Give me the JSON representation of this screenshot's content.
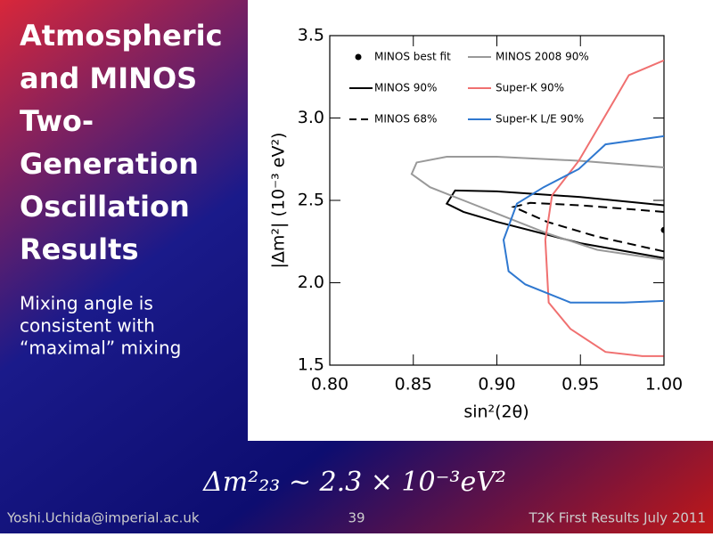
{
  "slide": {
    "title_lines": [
      "Atmospheric",
      "and MINOS",
      "Two-",
      "Generation",
      "Oscillation",
      "Results"
    ],
    "text_lines": [
      "Mixing angle is",
      "consistent with",
      "“maximal” mixing"
    ],
    "formula": "Δm²₂₃ ~ 2.3 × 10⁻³eV²",
    "footer": {
      "left": "Yoshi.Uchida@imperial.ac.uk",
      "center": "39",
      "right": "T2K First Results July 2011"
    }
  },
  "chart_data": {
    "type": "line",
    "xlabel": "sin²(2θ)",
    "ylabel": "|Δm²| (10⁻³ eV²)",
    "xlim": [
      0.8,
      1.0
    ],
    "ylim": [
      1.5,
      3.5
    ],
    "xticks": [
      {
        "value": 0.8,
        "label": "0.80"
      },
      {
        "value": 0.85,
        "label": "0.85"
      },
      {
        "value": 0.9,
        "label": "0.90"
      },
      {
        "value": 0.95,
        "label": "0.95"
      },
      {
        "value": 1.0,
        "label": "1.00"
      }
    ],
    "yticks": [
      {
        "value": 1.5,
        "label": "1.5"
      },
      {
        "value": 2.0,
        "label": "2.0"
      },
      {
        "value": 2.5,
        "label": "2.5"
      },
      {
        "value": 3.0,
        "label": "3.0"
      },
      {
        "value": 3.5,
        "label": "3.5"
      }
    ],
    "legend": "top",
    "series": [
      {
        "name": "MINOS best fit",
        "color": "#000000",
        "marker": "point",
        "x": [
          1.0
        ],
        "y": [
          2.32
        ]
      },
      {
        "name": "MINOS 90%",
        "color": "#000000",
        "dash": false,
        "x": [
          1.0,
          0.95,
          0.9,
          0.875,
          0.87,
          0.88,
          0.9,
          0.95,
          1.0
        ],
        "y": [
          2.47,
          2.52,
          2.555,
          2.56,
          2.48,
          2.43,
          2.37,
          2.24,
          2.15
        ]
      },
      {
        "name": "MINOS 68%",
        "color": "#000000",
        "dash": true,
        "x": [
          1.0,
          0.95,
          0.92,
          0.91,
          0.93,
          0.96,
          1.0
        ],
        "y": [
          2.43,
          2.47,
          2.485,
          2.46,
          2.37,
          2.28,
          2.19
        ]
      },
      {
        "name": "MINOS 2008 90%",
        "color": "#999999",
        "dash": false,
        "x": [
          1.0,
          0.95,
          0.9,
          0.87,
          0.852,
          0.849,
          0.86,
          0.88,
          0.9,
          0.93,
          0.96,
          1.0
        ],
        "y": [
          2.7,
          2.74,
          2.765,
          2.765,
          2.73,
          2.66,
          2.58,
          2.5,
          2.42,
          2.3,
          2.2,
          2.14
        ]
      },
      {
        "name": "Super-K 90%",
        "color": "#f07070",
        "dash": false,
        "x": [
          1.0,
          0.979,
          0.971,
          0.949,
          0.933,
          0.929,
          0.931,
          0.944,
          0.965,
          0.987,
          1.0
        ],
        "y": [
          3.35,
          3.26,
          3.12,
          2.74,
          2.53,
          2.26,
          1.88,
          1.72,
          1.58,
          1.555,
          1.555
        ]
      },
      {
        "name": "Super-K L/E 90%",
        "color": "#2f78d0",
        "dash": false,
        "x": [
          1.0,
          0.965,
          0.949,
          0.928,
          0.912,
          0.904,
          0.907,
          0.917,
          0.944,
          0.976,
          1.0
        ],
        "y": [
          2.89,
          2.84,
          2.69,
          2.58,
          2.48,
          2.26,
          2.07,
          1.99,
          1.88,
          1.88,
          1.89
        ]
      }
    ]
  }
}
